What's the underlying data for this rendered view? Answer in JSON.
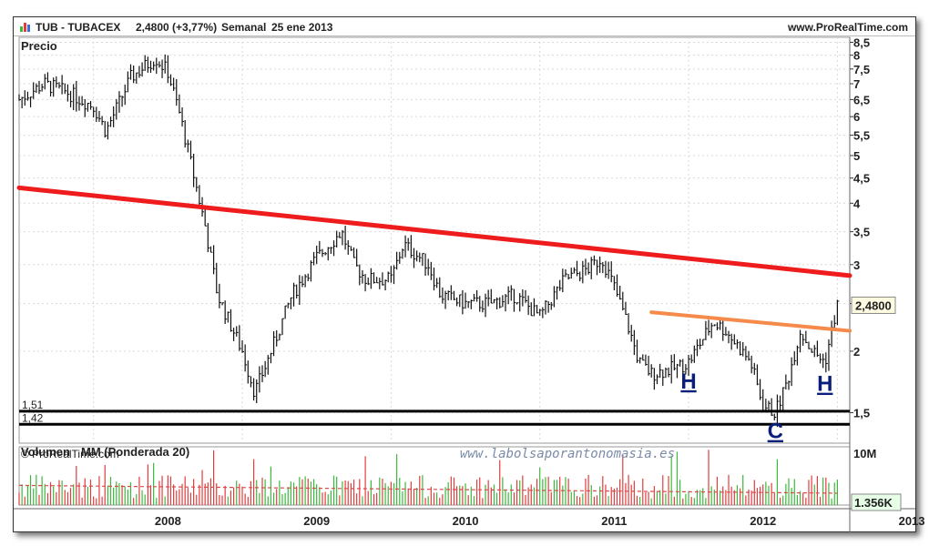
{
  "header": {
    "symbol": "TUB - TUBACEX",
    "price_change": "2,4800 (+3,77%)",
    "period": "Semanal",
    "date": "25 ene 2013",
    "site": "www.ProRealTime.com"
  },
  "panel_labels": {
    "price": "Precio",
    "volume": "Volumen",
    "volume_ma": "MM (Ponderada 20)",
    "copyright": "© ProRealTime.com",
    "watermark": "www.labolsaporantonomasia.es"
  },
  "price_axis": {
    "ticks": [
      "8,5",
      "8",
      "7,5",
      "7",
      "6,5",
      "6",
      "5,5",
      "5",
      "4,5",
      "4",
      "3,5",
      "3",
      "2,5",
      "2",
      "1,5"
    ],
    "current_label": "2,4800"
  },
  "volume_axis": {
    "top_label": "10M",
    "current_label": "1.356K"
  },
  "time_axis": {
    "labels": [
      "2008",
      "2009",
      "2010",
      "2011",
      "2012",
      "2013"
    ]
  },
  "annotations": {
    "support_1": "1,51",
    "support_2": "1,42",
    "shoulder_left": "H",
    "shoulder_right": "H",
    "head": "C"
  },
  "colors": {
    "bars": "#111111",
    "resistance": "#ee1c1c",
    "neckline": "#f58a4a",
    "support": "#000000",
    "volume_up": "#3cb83c",
    "volume_down": "#e23c3c",
    "volume_ma": "#d94a4a",
    "annotation_letters": "#0a1e7a",
    "volume_label": "#c0392b",
    "watermark": "#7a8aa8"
  },
  "chart_data": {
    "type": "line",
    "title": "TUB - TUBACEX",
    "scale": "log",
    "ylim": [
      1.3,
      8.7
    ],
    "x_range": [
      "2007-07",
      "2013-02"
    ],
    "series": [
      {
        "name": "Precio",
        "x": [
          "2007-07",
          "2007-09",
          "2007-11",
          "2008-01",
          "2008-02",
          "2008-04",
          "2008-06",
          "2008-07",
          "2008-08",
          "2008-10",
          "2008-11",
          "2009-01",
          "2009-02",
          "2009-03",
          "2009-05",
          "2009-07",
          "2009-09",
          "2009-10",
          "2009-11",
          "2010-01",
          "2010-02",
          "2010-04",
          "2010-05",
          "2010-07",
          "2010-09",
          "2010-11",
          "2011-01",
          "2011-03",
          "2011-05",
          "2011-06",
          "2011-07",
          "2011-08",
          "2011-09",
          "2011-10",
          "2011-12",
          "2012-01",
          "2012-03",
          "2012-04",
          "2012-06",
          "2012-07",
          "2012-08",
          "2012-09",
          "2012-10",
          "2012-11",
          "2012-12",
          "2013-01"
        ],
        "values": [
          6.5,
          7.0,
          6.7,
          6.3,
          5.6,
          7.2,
          7.9,
          7.4,
          6.0,
          3.6,
          2.6,
          2.0,
          1.65,
          1.9,
          2.6,
          3.1,
          3.5,
          3.0,
          2.8,
          2.8,
          3.3,
          3.0,
          2.6,
          2.5,
          2.5,
          2.6,
          2.35,
          2.8,
          2.95,
          3.1,
          2.7,
          2.3,
          1.9,
          1.8,
          1.85,
          1.9,
          2.3,
          2.2,
          1.9,
          1.55,
          1.5,
          1.75,
          2.2,
          2.0,
          1.9,
          2.48
        ]
      }
    ],
    "lines": [
      {
        "name": "resistance",
        "from": [
          "2007-07",
          4.3
        ],
        "to": [
          "2013-02",
          2.85
        ]
      },
      {
        "name": "neckline",
        "from": [
          "2011-10",
          2.4
        ],
        "to": [
          "2013-02",
          2.2
        ]
      },
      {
        "name": "support",
        "value": 1.51
      },
      {
        "name": "support",
        "value": 1.42
      }
    ],
    "volume": {
      "name": "Volumen",
      "ylim_label": "10M",
      "current": "1.356K"
    },
    "grid": true
  }
}
